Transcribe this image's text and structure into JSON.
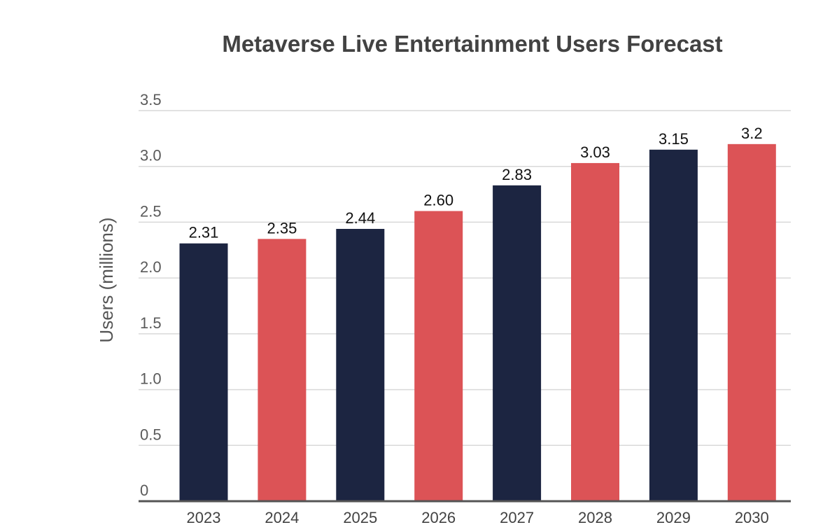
{
  "chart_data": {
    "type": "bar",
    "title": "Metaverse Live Entertainment Users Forecast",
    "xlabel": "",
    "ylabel": "Users (millions)",
    "categories": [
      "2023",
      "2024",
      "2025",
      "2026",
      "2027",
      "2028",
      "2029",
      "2030"
    ],
    "values": [
      2.31,
      2.35,
      2.44,
      2.6,
      2.83,
      3.03,
      3.15,
      3.2
    ],
    "value_labels": [
      "2.31",
      "2.35",
      "2.44",
      "2.60",
      "2.83",
      "3.03",
      "3.15",
      "3.2"
    ],
    "ylim": [
      0,
      3.5
    ],
    "yticks": [
      0,
      0.5,
      1.0,
      1.5,
      2.0,
      2.5,
      3.0,
      3.5
    ],
    "ytick_labels": [
      "0",
      "0.5",
      "1.0",
      "1.5",
      "2.0",
      "2.5",
      "3.0",
      "3.5"
    ],
    "grid": true,
    "legend": "none",
    "bar_colors": [
      "#1c2541",
      "#dc5356",
      "#1c2541",
      "#dc5356",
      "#1c2541",
      "#dc5356",
      "#1c2541",
      "#dc5356"
    ]
  },
  "colors": {
    "dark_bar": "#1c2541",
    "red_bar": "#dc5356",
    "gridline": "#d9d9d9",
    "baseline": "#555555"
  }
}
